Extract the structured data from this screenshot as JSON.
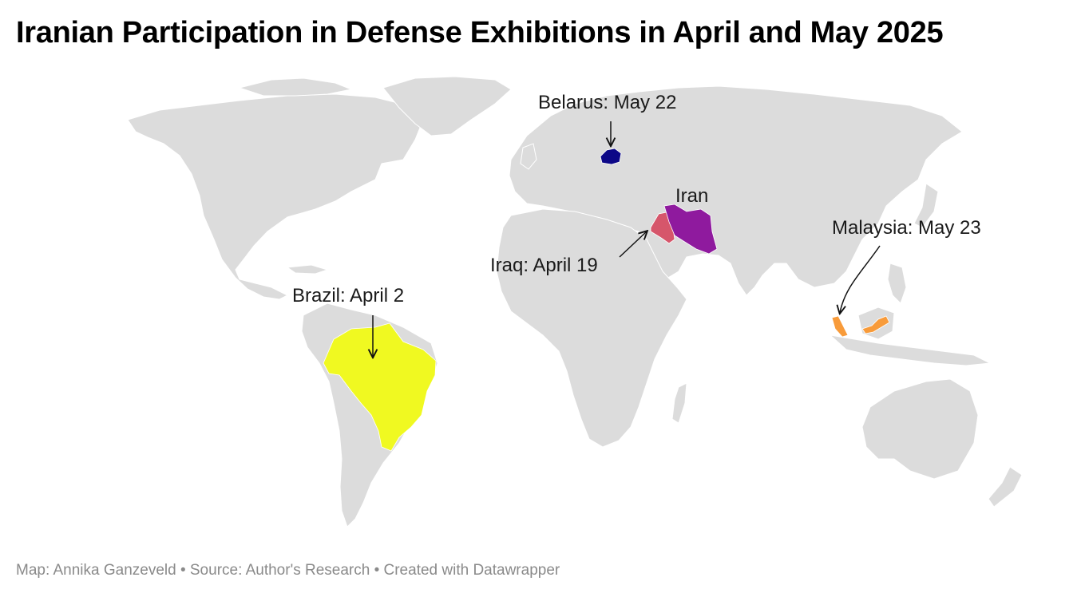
{
  "title": "Iranian Participation in Defense Exhibitions in April and May 2025",
  "footer": "Map: Annika Ganzeveld • Source: Author's Research • Created with Datawrapper",
  "colors": {
    "land": "#dcdcdc",
    "belarus": "#0d0887",
    "iran": "#8f1a9e",
    "iraq": "#d6566b",
    "malaysia": "#f89b3a",
    "brazil": "#f0f921"
  },
  "annotations": {
    "belarus": "Belarus: May 22",
    "iran": "Iran",
    "iraq": "Iraq: April 19",
    "malaysia": "Malaysia: May 23",
    "brazil": "Brazil: April 2"
  }
}
